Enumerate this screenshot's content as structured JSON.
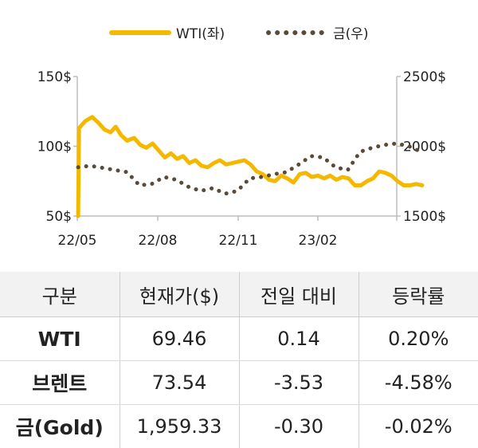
{
  "chart_data": {
    "type": "line",
    "legend_position": "top",
    "legend": [
      {
        "name": "WTI(좌)",
        "color": "#f5b800",
        "style": "solid",
        "axis": "left"
      },
      {
        "name": "금(우)",
        "color": "#5a4a3a",
        "style": "dotted",
        "axis": "right"
      }
    ],
    "x_tick_labels": [
      "22/05",
      "22/08",
      "22/11",
      "23/02"
    ],
    "x_range": [
      "2022-05",
      "2023-05"
    ],
    "y_left": {
      "range": [
        50,
        150
      ],
      "ticks": [
        "50$",
        "100$",
        "150$"
      ]
    },
    "y_right": {
      "range": [
        1500,
        2500
      ],
      "ticks": [
        "1500$",
        "2000$",
        "2500$"
      ]
    },
    "series": [
      {
        "name": "WTI(좌)",
        "axis": "left",
        "x": [
          "2022-05-02",
          "2022-05-03",
          "2022-05-10",
          "2022-05-18",
          "2022-05-25",
          "2022-06-01",
          "2022-06-08",
          "2022-06-14",
          "2022-06-20",
          "2022-06-27",
          "2022-07-05",
          "2022-07-12",
          "2022-07-19",
          "2022-07-26",
          "2022-08-02",
          "2022-08-09",
          "2022-08-16",
          "2022-08-23",
          "2022-08-30",
          "2022-09-06",
          "2022-09-13",
          "2022-09-20",
          "2022-09-27",
          "2022-10-04",
          "2022-10-11",
          "2022-10-18",
          "2022-10-25",
          "2022-11-01",
          "2022-11-08",
          "2022-11-15",
          "2022-11-22",
          "2022-11-29",
          "2022-12-06",
          "2022-12-13",
          "2022-12-20",
          "2022-12-27",
          "2023-01-03",
          "2023-01-10",
          "2023-01-17",
          "2023-01-24",
          "2023-01-31",
          "2023-02-07",
          "2023-02-14",
          "2023-02-21",
          "2023-02-28",
          "2023-03-07",
          "2023-03-14",
          "2023-03-21",
          "2023-03-28",
          "2023-04-04",
          "2023-04-11",
          "2023-04-18",
          "2023-04-25",
          "2023-05-02",
          "2023-05-09",
          "2023-05-16",
          "2023-05-23",
          "2023-05-30"
        ],
        "values": [
          50,
          113,
          118,
          121,
          117,
          112,
          110,
          114,
          108,
          104,
          106,
          101,
          99,
          102,
          97,
          92,
          95,
          91,
          93,
          88,
          90,
          86,
          85,
          88,
          90,
          87,
          88,
          89,
          90,
          87,
          82,
          80,
          76,
          75,
          79,
          77,
          74,
          80,
          81,
          78,
          79,
          77,
          79,
          76,
          78,
          77,
          72,
          72,
          75,
          77,
          82,
          81,
          79,
          75,
          72,
          72,
          73,
          72
        ]
      },
      {
        "name": "금(우)",
        "axis": "right",
        "x": [
          "2022-05-02",
          "2022-05-16",
          "2022-05-30",
          "2022-06-13",
          "2022-06-27",
          "2022-07-11",
          "2022-07-25",
          "2022-08-08",
          "2022-08-22",
          "2022-09-05",
          "2022-09-19",
          "2022-10-03",
          "2022-10-17",
          "2022-10-31",
          "2022-11-14",
          "2022-11-28",
          "2022-12-12",
          "2022-12-26",
          "2023-01-09",
          "2023-01-23",
          "2023-02-06",
          "2023-02-20",
          "2023-03-06",
          "2023-03-20",
          "2023-04-03",
          "2023-04-17",
          "2023-05-01",
          "2023-05-15",
          "2023-05-29"
        ],
        "values": [
          1850,
          1860,
          1845,
          1830,
          1815,
          1720,
          1730,
          1780,
          1760,
          1710,
          1680,
          1700,
          1660,
          1680,
          1770,
          1780,
          1800,
          1815,
          1870,
          1930,
          1920,
          1850,
          1830,
          1960,
          1990,
          2010,
          2020,
          2000,
          1960
        ]
      }
    ]
  },
  "table": {
    "headers": [
      "구분",
      "현재가($)",
      "전일 대비",
      "등락률"
    ],
    "rows": [
      {
        "name": "WTI",
        "price": "69.46",
        "change": "0.14",
        "rate": "0.20%"
      },
      {
        "name": "브렌트",
        "price": "73.54",
        "change": "-3.53",
        "rate": "-4.58%"
      },
      {
        "name": "금(Gold)",
        "price": "1,959.33",
        "change": "-0.30",
        "rate": "-0.02%"
      }
    ]
  }
}
